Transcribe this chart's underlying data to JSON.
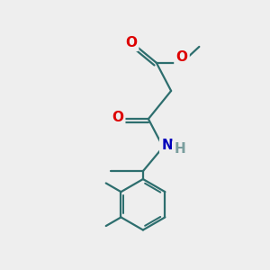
{
  "bg_color": "#eeeeee",
  "bond_color": "#2d6e6e",
  "bond_width": 1.6,
  "atom_colors": {
    "O": "#dd0000",
    "N": "#0000bb",
    "H": "#7a9e9e",
    "C": "#2d6e6e"
  },
  "font_size_atom": 11,
  "font_size_small": 9,
  "figsize": [
    3.0,
    3.0
  ],
  "dpi": 100,
  "xlim": [
    0,
    10
  ],
  "ylim": [
    0,
    10
  ]
}
